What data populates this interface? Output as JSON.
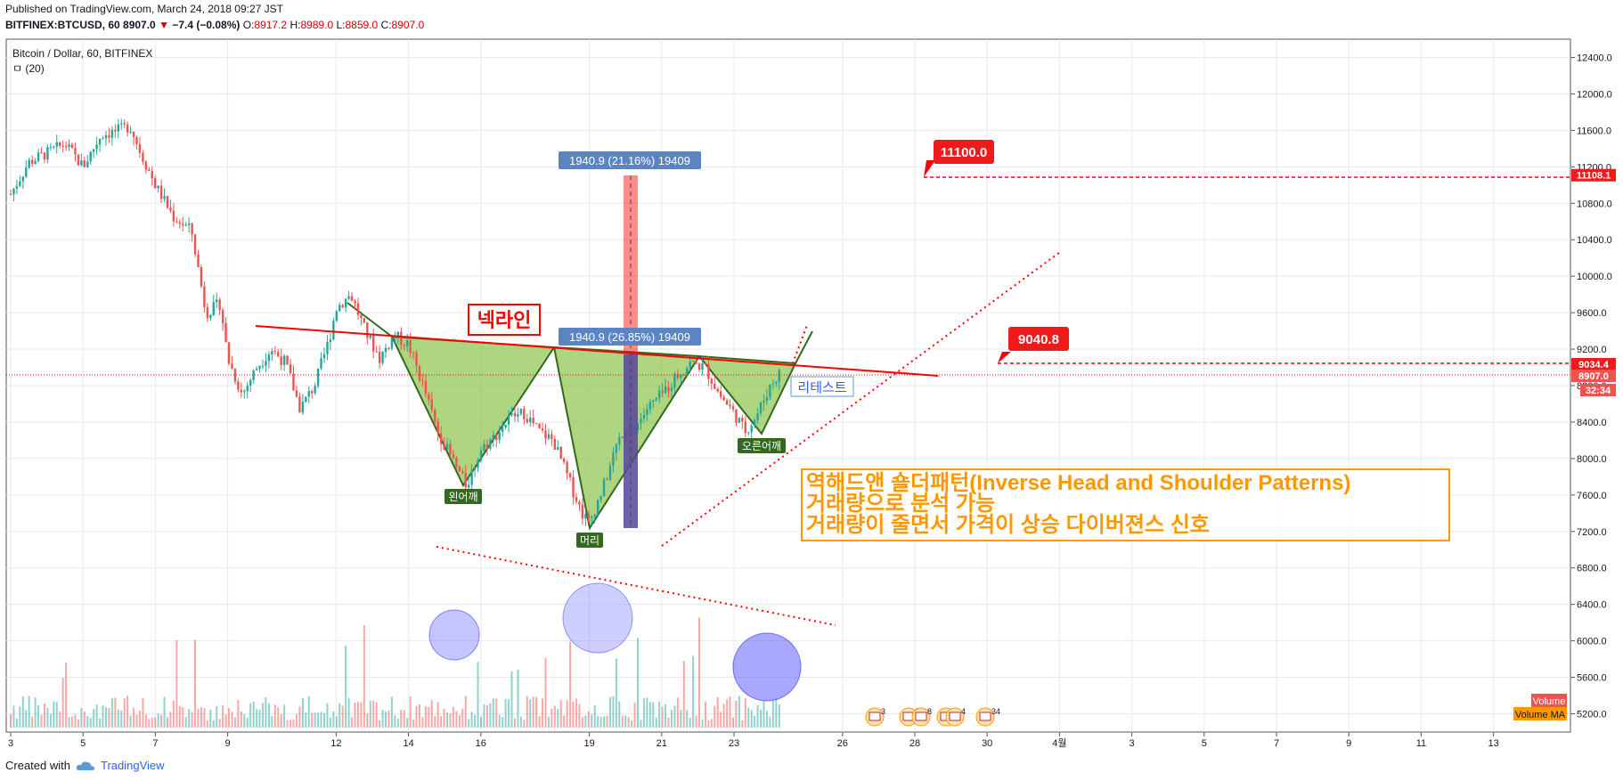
{
  "header": {
    "published": "Published on TradingView.com, March 24, 2018 09:27 JST",
    "symbol": "BITFINEX:BTCUSD, 60",
    "last": "8907.0",
    "change": "−7.4 (−0.08%)",
    "o_label": "O:",
    "o": "8917.2",
    "h_label": "H:",
    "h": "8989.0",
    "l_label": "L:",
    "l": "8859.0",
    "c_label": "C:",
    "c": "8907.0"
  },
  "legend": {
    "title": "Bitcoin / Dollar, 60, BITFINEX",
    "indicator": "ㅁ (20)"
  },
  "footer": {
    "created_with": "Created with",
    "brand": "TradingView"
  },
  "colors": {
    "up": "#26a69a",
    "down": "#ef5350",
    "pattern": "#8bc34a",
    "annotation": "#ff9800",
    "drawing": "#ff0000"
  },
  "chart_data": {
    "type": "candlestick",
    "ylim": [
      5000,
      12600
    ],
    "yticks": [
      5200,
      5600,
      6000,
      6400,
      6800,
      7200,
      7600,
      8000,
      8400,
      8800,
      9200,
      9600,
      10000,
      10400,
      10800,
      11200,
      11600,
      12000,
      12400
    ],
    "xticks": [
      {
        "label": "3",
        "x": 0
      },
      {
        "label": "5",
        "x": 2
      },
      {
        "label": "7",
        "x": 4
      },
      {
        "label": "9",
        "x": 6
      },
      {
        "label": "12",
        "x": 9
      },
      {
        "label": "14",
        "x": 11
      },
      {
        "label": "16",
        "x": 13
      },
      {
        "label": "19",
        "x": 16
      },
      {
        "label": "21",
        "x": 18
      },
      {
        "label": "23",
        "x": 20
      },
      {
        "label": "26",
        "x": 23
      },
      {
        "label": "28",
        "x": 25
      },
      {
        "label": "30",
        "x": 27
      },
      {
        "label": "4월",
        "x": 29
      },
      {
        "label": "3",
        "x": 31
      },
      {
        "label": "5",
        "x": 33
      },
      {
        "label": "7",
        "x": 35
      },
      {
        "label": "9",
        "x": 37
      },
      {
        "label": "11",
        "x": 39
      },
      {
        "label": "13",
        "x": 41
      }
    ],
    "price_path": [
      [
        0,
        10900
      ],
      [
        0.5,
        11250
      ],
      [
        1,
        11350
      ],
      [
        1.5,
        11450
      ],
      [
        2,
        11200
      ],
      [
        2.5,
        11550
      ],
      [
        3,
        11600
      ],
      [
        3.3,
        11650
      ],
      [
        3.6,
        11350
      ],
      [
        4,
        11000
      ],
      [
        4.5,
        10650
      ],
      [
        5,
        10500
      ],
      [
        5.4,
        9600
      ],
      [
        5.8,
        9700
      ],
      [
        6,
        9100
      ],
      [
        6.4,
        8700
      ],
      [
        6.8,
        9000
      ],
      [
        7.2,
        9200
      ],
      [
        7.6,
        9050
      ],
      [
        8,
        8550
      ],
      [
        8.4,
        8800
      ],
      [
        8.8,
        9300
      ],
      [
        9,
        9650
      ],
      [
        9.4,
        9800
      ],
      [
        9.8,
        9400
      ],
      [
        10.2,
        9100
      ],
      [
        10.6,
        9350
      ],
      [
        11,
        9250
      ],
      [
        11.4,
        8800
      ],
      [
        11.8,
        8300
      ],
      [
        12.2,
        8000
      ],
      [
        12.6,
        7700
      ],
      [
        13,
        8100
      ],
      [
        13.4,
        8250
      ],
      [
        13.8,
        8450
      ],
      [
        14.2,
        8500
      ],
      [
        14.6,
        8300
      ],
      [
        15,
        8200
      ],
      [
        15.4,
        7800
      ],
      [
        15.8,
        7400
      ],
      [
        16,
        7300
      ],
      [
        16.4,
        7700
      ],
      [
        16.8,
        8200
      ],
      [
        17.2,
        8300
      ],
      [
        17.6,
        8550
      ],
      [
        18,
        8700
      ],
      [
        18.4,
        8900
      ],
      [
        18.8,
        9050
      ],
      [
        19.2,
        9000
      ],
      [
        19.6,
        8700
      ],
      [
        20,
        8500
      ],
      [
        20.3,
        8300
      ],
      [
        20.6,
        8450
      ],
      [
        21,
        8800
      ],
      [
        21.3,
        8960
      ]
    ],
    "price_lines": [
      {
        "label": "11108.1",
        "value": 11108.1
      },
      {
        "label": "9034.4",
        "value": 9034.4
      },
      {
        "label": "8907.0",
        "value": 8907.0
      }
    ],
    "countdown": "32:34",
    "volume_labels": [
      "Volume",
      "Volume MA"
    ],
    "annotations": {
      "neckline_label": "넥라인",
      "retest": "리테스트",
      "left_shoulder": "왼어깨",
      "head": "머리",
      "right_shoulder": "오른어깨",
      "target_label": "11100.0",
      "neck_price_label": "9040.8",
      "measure_top": "1940.9 (21.16%) 19409",
      "measure_mid": "1940.9 (26.85%) 19409",
      "note_line1": "역해드앤 숄더패턴(Inverse Head and Shoulder Patterns)",
      "note_line2": "거래량으로 분석 가능",
      "note_line3": "거래량이 줄면서 가격이 상승 다이버젼스 신호"
    },
    "events": [
      "3",
      "2",
      "8",
      "5",
      "4",
      "34"
    ]
  }
}
